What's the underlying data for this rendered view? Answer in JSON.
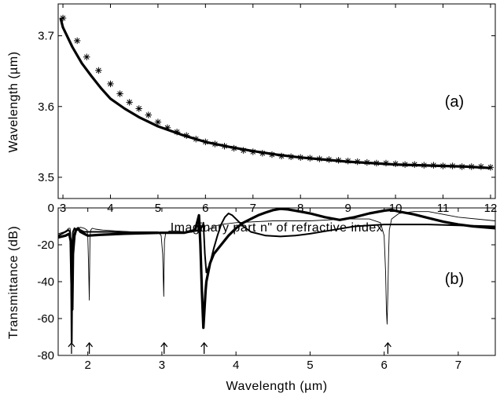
{
  "chart_data": [
    {
      "type": "scatter",
      "panel": "(a)",
      "xlabel": "Imaginary part n\" of refractive index",
      "ylabel": "Wavelength (µm)",
      "xlim": [
        2.9,
        12.1
      ],
      "ylim": [
        3.47,
        3.745
      ],
      "xticks": [
        3,
        4,
        5,
        6,
        7,
        8,
        9,
        10,
        11,
        12
      ],
      "yticks": [
        3.5,
        3.6,
        3.7
      ],
      "grid": false,
      "series": [
        {
          "kind": "line",
          "x": [
            2.95,
            3.0,
            3.2,
            3.4,
            3.6,
            3.8,
            4.0,
            4.3,
            4.6,
            5.0,
            5.5,
            6.0,
            6.5,
            7.0,
            7.5,
            8.0,
            8.5,
            9.0,
            9.5,
            10.0,
            10.5,
            11.0,
            11.5,
            12.0
          ],
          "y": [
            3.725,
            3.712,
            3.684,
            3.661,
            3.643,
            3.626,
            3.611,
            3.597,
            3.585,
            3.572,
            3.56,
            3.55,
            3.543,
            3.537,
            3.532,
            3.528,
            3.525,
            3.522,
            3.52,
            3.518,
            3.517,
            3.516,
            3.515,
            3.513
          ]
        },
        {
          "kind": "markers",
          "x": [
            3.0,
            3.3,
            3.5,
            3.75,
            4.0,
            4.2,
            4.4,
            4.6,
            4.8,
            5.0,
            5.2,
            5.4,
            5.6,
            5.8,
            6.0,
            6.2,
            6.4,
            6.6,
            6.8,
            7.0,
            7.2,
            7.4,
            7.6,
            7.8,
            8.0,
            8.2,
            8.4,
            8.6,
            8.8,
            9.0,
            9.2,
            9.4,
            9.6,
            9.8,
            10.0,
            10.2,
            10.4,
            10.6,
            10.8,
            11.0,
            11.2,
            11.4,
            11.6,
            11.8,
            12.0
          ],
          "y": [
            3.725,
            3.693,
            3.67,
            3.651,
            3.632,
            3.618,
            3.606,
            3.597,
            3.588,
            3.578,
            3.57,
            3.564,
            3.559,
            3.554,
            3.55,
            3.547,
            3.544,
            3.541,
            3.538,
            3.536,
            3.534,
            3.532,
            3.53,
            3.529,
            3.528,
            3.527,
            3.526,
            3.525,
            3.524,
            3.523,
            3.522,
            3.521,
            3.52,
            3.52,
            3.519,
            3.518,
            3.518,
            3.517,
            3.517,
            3.516,
            3.516,
            3.515,
            3.515,
            3.515,
            3.514
          ]
        }
      ]
    },
    {
      "type": "line",
      "panel": "(b)",
      "xlabel": "Wavelength (µm)",
      "ylabel": "Transmittance (dB)",
      "xlim": [
        1.6,
        7.5
      ],
      "ylim": [
        -80,
        0
      ],
      "xticks": [
        2,
        3,
        4,
        5,
        6,
        7
      ],
      "yticks": [
        0,
        -20,
        -40,
        -60,
        -80
      ],
      "grid": false,
      "arrows_x": [
        1.78,
        2.02,
        3.03,
        3.57,
        6.05
      ],
      "series": [
        {
          "style": "thin",
          "x": [
            1.6,
            1.68,
            1.72,
            1.74,
            1.76,
            1.77,
            1.78,
            1.79,
            1.8,
            1.82,
            1.85,
            1.9,
            1.95,
            1.99,
            2.0,
            2.01,
            2.02,
            2.025,
            2.03,
            2.04,
            2.06,
            2.1,
            2.2,
            2.4,
            2.6,
            2.8,
            2.95,
            2.99,
            3.01,
            3.025,
            3.03,
            3.035,
            3.05,
            3.1,
            3.2,
            3.3,
            3.4,
            3.5,
            3.55,
            3.6,
            3.7,
            3.8,
            4.0,
            4.5,
            5.0,
            5.5,
            5.8,
            5.95,
            6.0,
            6.02,
            6.03,
            6.04,
            6.05,
            6.06,
            6.07,
            6.1,
            6.2,
            6.4,
            6.6,
            7.0,
            7.5
          ],
          "y": [
            -14,
            -13,
            -12,
            -11,
            -11,
            -14,
            -35,
            -73,
            -25,
            -14,
            -11.5,
            -10.5,
            -11,
            -12,
            -16,
            -30,
            -50,
            -30,
            -15,
            -12,
            -11,
            -11.5,
            -12,
            -12.5,
            -13,
            -13,
            -13,
            -15,
            -25,
            -48,
            -30,
            -18,
            -14,
            -12.5,
            -12.5,
            -13,
            -13,
            -12.5,
            -12.5,
            -12.5,
            -10,
            -9,
            -8,
            -7,
            -7,
            -6,
            -6,
            -8,
            -15,
            -35,
            -55,
            -63,
            -45,
            -25,
            -12,
            -6,
            -3,
            -2,
            -2,
            -5,
            -7
          ]
        },
        {
          "style": "medium",
          "x": [
            1.6,
            1.7,
            1.74,
            1.76,
            1.77,
            1.775,
            1.78,
            1.785,
            1.79,
            1.8,
            1.82,
            1.86,
            1.9,
            1.95,
            2.0,
            2.1,
            2.3,
            2.6,
            3.0,
            3.2,
            3.4,
            3.5,
            3.55,
            3.56,
            3.58,
            3.6,
            3.65,
            3.7,
            3.75,
            3.8,
            3.85,
            3.9,
            3.95,
            4.0,
            4.1,
            4.2,
            4.4,
            4.6,
            4.8,
            5.0,
            5.3,
            5.6,
            6.0,
            6.3,
            6.6,
            7.0,
            7.5
          ],
          "y": [
            -15,
            -13,
            -12,
            -13,
            -20,
            -40,
            -73,
            -40,
            -20,
            -13,
            -11,
            -12,
            -12,
            -13,
            -13,
            -13,
            -13,
            -13.5,
            -13.5,
            -13.5,
            -13,
            -12,
            -10,
            -8,
            -25,
            -35,
            -30,
            -22,
            -15,
            -9,
            -5,
            -3,
            -4,
            -6,
            -10,
            -13,
            -15,
            -15.5,
            -15,
            -14,
            -12,
            -10,
            -9,
            -9,
            -9,
            -9.5,
            -10
          ]
        },
        {
          "style": "thick",
          "x": [
            1.6,
            1.7,
            1.75,
            1.77,
            1.78,
            1.79,
            1.8,
            1.82,
            1.84,
            1.87,
            1.9,
            1.95,
            2.0,
            2.2,
            2.5,
            3.0,
            3.3,
            3.45,
            3.5,
            3.52,
            3.54,
            3.56,
            3.575,
            3.59,
            3.6,
            3.65,
            3.7,
            3.8,
            3.9,
            4.0,
            4.1,
            4.2,
            4.3,
            4.4,
            4.5,
            4.6,
            4.7,
            4.8,
            5.0,
            5.2,
            5.4,
            5.6,
            5.8,
            6.0,
            6.1,
            6.2,
            6.4,
            6.6,
            6.8,
            7.0,
            7.2,
            7.5
          ],
          "y": [
            -16,
            -15,
            -14,
            -18,
            -40,
            -55,
            -25,
            -15,
            -12,
            -11,
            -13,
            -14,
            -15,
            -14.5,
            -14,
            -13.5,
            -13.5,
            -12,
            -4,
            -20,
            -45,
            -65,
            -55,
            -45,
            -40,
            -30,
            -25,
            -20,
            -15,
            -11,
            -8,
            -6,
            -4,
            -2.5,
            -1.2,
            -0.5,
            -0.8,
            -1.5,
            -3,
            -5,
            -6.5,
            -5,
            -3,
            -1.5,
            -1,
            -2,
            -3.5,
            -5.5,
            -7.5,
            -9,
            -10,
            -11
          ]
        }
      ]
    }
  ]
}
